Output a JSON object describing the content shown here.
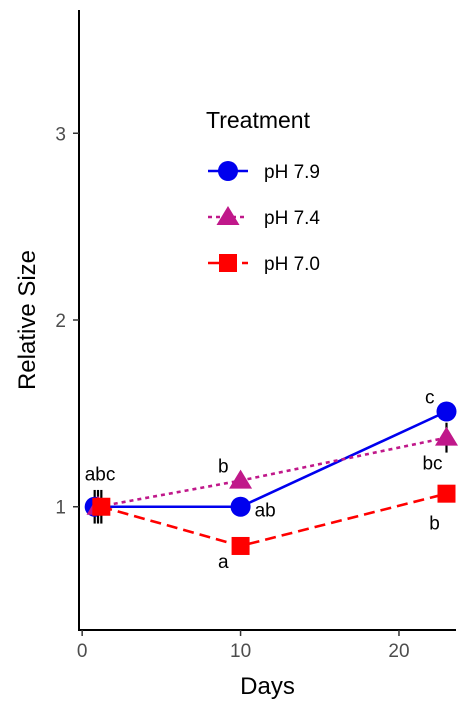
{
  "chart_data": {
    "type": "line",
    "xlabel": "Days",
    "ylabel": "Relative Size",
    "xlim": [
      -0.2,
      23.6
    ],
    "ylim": [
      0.34,
      3.66
    ],
    "xticks": [
      0,
      10,
      20
    ],
    "yticks": [
      1,
      2,
      3
    ],
    "grid": false,
    "legend": {
      "title": "Treatment",
      "placement": "top-center"
    },
    "series": [
      {
        "name": "pH 7.9",
        "color": "#0000ee",
        "marker": "circle",
        "linestyle": "solid",
        "x": [
          1,
          10,
          23
        ],
        "y": [
          1.0,
          1.0,
          1.51
        ],
        "err": [
          0.09,
          0.0,
          0.05
        ],
        "labels": [
          "",
          "ab",
          "c"
        ]
      },
      {
        "name": "pH 7.4",
        "color": "#c0188a",
        "marker": "triangle",
        "linestyle": "dotted",
        "x": [
          1,
          10,
          23
        ],
        "y": [
          1.0,
          1.14,
          1.37
        ],
        "err": [
          0.09,
          0.0,
          0.08
        ],
        "labels": [
          "",
          "b",
          "bc"
        ]
      },
      {
        "name": "pH 7.0",
        "color": "#ff0000",
        "marker": "square",
        "linestyle": "dashed",
        "x": [
          1,
          10,
          23
        ],
        "y": [
          1.0,
          0.79,
          1.07
        ],
        "err": [
          0.09,
          0.0,
          0.0
        ],
        "labels": [
          "",
          "a",
          "b"
        ]
      }
    ],
    "shared_labels": [
      {
        "text": "abc",
        "x": 1,
        "y": 1.0
      }
    ]
  }
}
